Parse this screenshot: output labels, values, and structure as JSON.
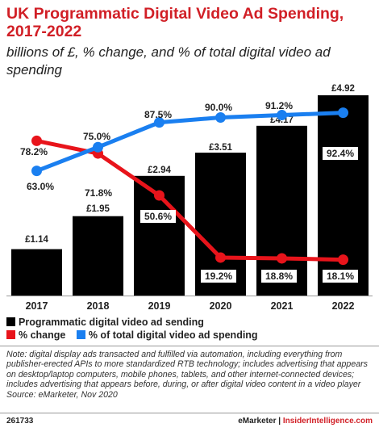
{
  "header": {
    "title": "UK Programmatic Digital Video Ad Spending, 2017-2022",
    "subtitle": "billions of £, % change, and % of total digital video ad spending"
  },
  "colors": {
    "bar": "#000000",
    "change": "#e8141b",
    "share": "#1a7ff0",
    "title": "#d11f26"
  },
  "chart_data": {
    "type": "bar",
    "categories": [
      "2017",
      "2018",
      "2019",
      "2020",
      "2021",
      "2022"
    ],
    "series": [
      {
        "name": "Programmatic digital video ad sending",
        "type": "bar",
        "values": [
          1.14,
          1.95,
          2.94,
          3.51,
          4.17,
          4.92
        ],
        "labels": [
          "£1.14",
          "£1.95",
          "£2.94",
          "£3.51",
          "£4.17",
          "£4.92"
        ]
      },
      {
        "name": "% change",
        "type": "line",
        "values": [
          78.2,
          71.8,
          50.6,
          19.2,
          18.8,
          18.1
        ],
        "labels": [
          "78.2%",
          "71.8%",
          "50.6%",
          "19.2%",
          "18.8%",
          "18.1%"
        ]
      },
      {
        "name": "% of total digital video ad spending",
        "type": "line",
        "values": [
          63.0,
          75.0,
          87.5,
          90.0,
          91.2,
          92.4
        ],
        "labels": [
          "63.0%",
          "75.0%",
          "87.5%",
          "90.0%",
          "91.2%",
          "92.4%"
        ]
      }
    ],
    "grid": false,
    "legend_position": "bottom-left"
  },
  "legend": {
    "bars": "Programmatic digital video ad sending",
    "change": "% change",
    "share": "% of total digital video ad spending"
  },
  "note": "Note: digital display ads transacted and fulfilled via automation, including everything from publisher-erected APIs to more standardized RTB technology; includes advertising that appears on desktop/laptop computers, mobile phones, tablets, and other internet-connected devices; includes advertising that appears before, during, or after digital video content in a video player",
  "source": "Source: eMarketer, Nov 2020",
  "footer": {
    "id": "261733",
    "brand1": "eMarketer",
    "sep": "|",
    "brand2": "InsiderIntelligence.com"
  }
}
